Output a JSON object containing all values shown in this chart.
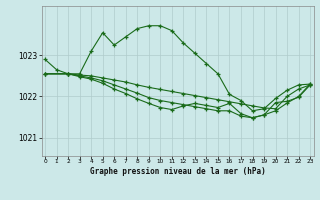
{
  "title": "Graphe pression niveau de la mer (hPa)",
  "background_color": "#cce8e8",
  "line_color": "#1a6b1a",
  "grid_color": "#b0cccc",
  "xlim": [
    -0.3,
    23.3
  ],
  "ylim": [
    1020.55,
    1024.2
  ],
  "yticks": [
    1021,
    1022,
    1023
  ],
  "xticks": [
    0,
    1,
    2,
    3,
    4,
    5,
    6,
    7,
    8,
    9,
    10,
    11,
    12,
    13,
    14,
    15,
    16,
    17,
    18,
    19,
    20,
    21,
    22,
    23
  ],
  "series": [
    {
      "x": [
        0,
        1,
        2,
        3,
        4,
        5,
        6,
        7,
        8,
        9,
        10,
        11,
        12,
        13,
        14,
        15,
        16,
        17,
        18,
        19,
        20,
        21,
        22,
        23
      ],
      "y": [
        1022.9,
        1022.65,
        1022.55,
        1022.55,
        1023.1,
        1023.55,
        1023.25,
        1023.45,
        1023.65,
        1023.72,
        1023.72,
        1023.6,
        1023.3,
        1023.05,
        1022.8,
        1022.55,
        1022.05,
        1021.9,
        1021.65,
        1021.7,
        1021.95,
        1022.15,
        1022.28,
        1022.3
      ]
    },
    {
      "x": [
        0,
        2,
        3,
        4,
        5,
        6,
        7,
        8,
        9,
        10,
        11,
        12,
        13,
        14,
        15,
        16,
        17,
        18,
        19,
        20,
        21,
        22,
        23
      ],
      "y": [
        1022.55,
        1022.55,
        1022.52,
        1022.5,
        1022.45,
        1022.4,
        1022.35,
        1022.28,
        1022.22,
        1022.17,
        1022.12,
        1022.07,
        1022.02,
        1021.97,
        1021.92,
        1021.87,
        1021.82,
        1021.77,
        1021.72,
        1021.7,
        1022.0,
        1022.18,
        1022.28
      ]
    },
    {
      "x": [
        0,
        2,
        3,
        4,
        5,
        6,
        7,
        8,
        9,
        10,
        11,
        12,
        13,
        14,
        15,
        16,
        17,
        18,
        19,
        20,
        21,
        22,
        23
      ],
      "y": [
        1022.55,
        1022.55,
        1022.5,
        1022.45,
        1022.38,
        1022.28,
        1022.18,
        1022.08,
        1021.97,
        1021.9,
        1021.85,
        1021.8,
        1021.75,
        1021.7,
        1021.65,
        1021.65,
        1021.52,
        1021.48,
        1021.55,
        1021.85,
        1021.88,
        1021.98,
        1022.28
      ]
    },
    {
      "x": [
        0,
        2,
        3,
        4,
        5,
        6,
        7,
        8,
        9,
        10,
        11,
        12,
        13,
        14,
        15,
        16,
        17,
        18,
        19,
        20,
        21,
        22,
        23
      ],
      "y": [
        1022.55,
        1022.55,
        1022.48,
        1022.42,
        1022.32,
        1022.18,
        1022.07,
        1021.94,
        1021.83,
        1021.73,
        1021.68,
        1021.77,
        1021.83,
        1021.78,
        1021.73,
        1021.83,
        1021.58,
        1021.48,
        1021.55,
        1021.65,
        1021.84,
        1022.0,
        1022.3
      ]
    }
  ]
}
